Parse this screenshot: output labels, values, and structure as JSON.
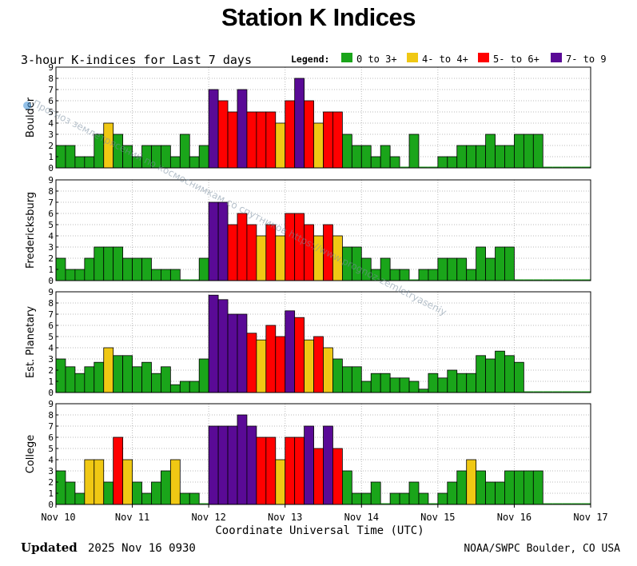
{
  "page_title": "Station K Indices",
  "footer": {
    "updated_label": "Updated",
    "updated_value": "2025 Nov 16 0930",
    "credit": "NOAA/SWPC Boulder, CO USA"
  },
  "watermark": "Прогноз землетрясений по космоснимкам со спутников   https://www.prognoz-zemletryaseniy",
  "chart_data": {
    "type": "bar",
    "title": "3-hour K-indices for Last 7 days",
    "xlabel": "Coordinate Universal Time (UTC)",
    "legend": {
      "label": "Legend:",
      "placement": "top-right",
      "items": [
        {
          "label": "0 to 3+",
          "color": "#1aa51a"
        },
        {
          "label": "4- to 4+",
          "color": "#f0c814"
        },
        {
          "label": "5- to 6+",
          "color": "#ff0000"
        },
        {
          "label": "7- to 9",
          "color": "#5a0a96"
        }
      ]
    },
    "ylim": [
      0,
      9
    ],
    "yticks": [
      "0",
      "1",
      "2",
      "3",
      "4",
      "5",
      "6",
      "7",
      "8",
      "9"
    ],
    "x_ticks": [
      "Nov 10",
      "Nov 11",
      "Nov 12",
      "Nov 13",
      "Nov 14",
      "Nov 15",
      "Nov 16",
      "Nov 17"
    ],
    "bins_per_day": 8,
    "total_bins": 56,
    "series": [
      {
        "name": "Boulder",
        "values": [
          2,
          2,
          1,
          1,
          3,
          4,
          3,
          2,
          1,
          2,
          2,
          2,
          1,
          3,
          1,
          2,
          7,
          6,
          5,
          7,
          5,
          5,
          5,
          4,
          6,
          8,
          6,
          4,
          5,
          5,
          3,
          2,
          2,
          1,
          2,
          1,
          0,
          3,
          0,
          0,
          1,
          1,
          2,
          2,
          2,
          3,
          2,
          2,
          3,
          3,
          3,
          0,
          0,
          0,
          0,
          0
        ]
      },
      {
        "name": "Fredericksburg",
        "values": [
          2,
          1,
          1,
          2,
          3,
          3,
          3,
          2,
          2,
          2,
          1,
          1,
          1,
          0,
          0,
          2,
          7,
          7,
          5,
          6,
          5,
          4,
          5,
          4,
          6,
          6,
          5,
          4,
          5,
          4,
          3,
          3,
          2,
          1,
          2,
          1,
          1,
          0,
          1,
          1,
          2,
          2,
          2,
          1,
          3,
          2,
          3,
          3,
          0,
          0,
          0,
          0,
          0,
          0,
          0,
          0
        ]
      },
      {
        "name": "Est. Planetary",
        "values": [
          3,
          2.3,
          1.7,
          2.3,
          2.7,
          4,
          3.3,
          3.3,
          2.3,
          2.7,
          1.7,
          2.3,
          0.7,
          1,
          1,
          3,
          8.7,
          8.3,
          7,
          7,
          5.3,
          4.7,
          6,
          5,
          7.3,
          6.7,
          4.7,
          5,
          4,
          3,
          2.3,
          2.3,
          1,
          1.7,
          1.7,
          1.3,
          1.3,
          1,
          0.3,
          1.7,
          1.3,
          2,
          1.7,
          1.7,
          3.3,
          3,
          3.7,
          3.3,
          2.7,
          0,
          0,
          0,
          0,
          0,
          0,
          0
        ]
      },
      {
        "name": "College",
        "values": [
          3,
          2,
          1,
          4,
          4,
          2,
          6,
          4,
          2,
          1,
          2,
          3,
          4,
          1,
          1,
          0,
          7,
          7,
          7,
          8,
          7,
          6,
          6,
          4,
          6,
          6,
          7,
          5,
          7,
          5,
          3,
          1,
          1,
          2,
          0,
          1,
          1,
          2,
          1,
          0,
          1,
          2,
          3,
          4,
          3,
          2,
          2,
          3,
          3,
          3,
          3,
          0,
          0,
          0,
          0,
          0
        ]
      }
    ]
  }
}
